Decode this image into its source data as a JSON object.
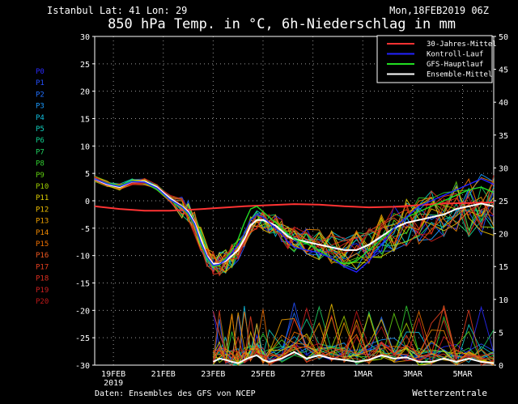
{
  "header": {
    "location": "Istanbul  Lat: 41 Lon: 29",
    "run": "Mon,18FEB2019 06Z",
    "title": "850 hPa Temp. in °C, 6h-Niederschlag in mm"
  },
  "footer": {
    "source": "Daten: Ensembles des GFS von NCEP",
    "brand": "Wetterzentrale"
  },
  "legend": [
    {
      "label": "30-Jahres-Mittel",
      "color": "#ff3333"
    },
    {
      "label": "Kontroll-Lauf",
      "color": "#2222ff"
    },
    {
      "label": "GFS-Hauptlauf",
      "color": "#22dd22"
    },
    {
      "label": "Ensemble-Mittel",
      "color": "#ffffff"
    }
  ],
  "members": [
    {
      "label": "P0",
      "color": "#2a2aff"
    },
    {
      "label": "P1",
      "color": "#2450ff"
    },
    {
      "label": "P2",
      "color": "#2070ff"
    },
    {
      "label": "P3",
      "color": "#1a9aff"
    },
    {
      "label": "P4",
      "color": "#10c0e0"
    },
    {
      "label": "P5",
      "color": "#10d0c0"
    },
    {
      "label": "P6",
      "color": "#10d090"
    },
    {
      "label": "P7",
      "color": "#20d060"
    },
    {
      "label": "P8",
      "color": "#30d030"
    },
    {
      "label": "P9",
      "color": "#60d010"
    },
    {
      "label": "P10",
      "color": "#a0d000"
    },
    {
      "label": "P11",
      "color": "#e0d000"
    },
    {
      "label": "P12",
      "color": "#f0c000"
    },
    {
      "label": "P13",
      "color": "#f0a000"
    },
    {
      "label": "P14",
      "color": "#f08800"
    },
    {
      "label": "P15",
      "color": "#f07000"
    },
    {
      "label": "P16",
      "color": "#f05820"
    },
    {
      "label": "P17",
      "color": "#e84020"
    },
    {
      "label": "P18",
      "color": "#e03020"
    },
    {
      "label": "P19",
      "color": "#d02020"
    },
    {
      "label": "P20",
      "color": "#c01818"
    }
  ],
  "chart_data": {
    "type": "line",
    "x_unit": "days after 18FEB2019 06Z",
    "ylabel_left": "°C",
    "ylabel_right": "mm",
    "ylim_left": [
      -30,
      30
    ],
    "ylim_right": [
      0,
      50
    ],
    "yticks_left": [
      30,
      25,
      20,
      15,
      10,
      5,
      0,
      -5,
      -10,
      -15,
      -20,
      -25,
      -30
    ],
    "yticks_right": [
      50,
      45,
      40,
      35,
      30,
      25,
      20,
      15,
      10,
      5,
      0
    ],
    "xlim": [
      0,
      16
    ],
    "xticks": [
      {
        "x": 0.75,
        "label": "19FEB",
        "sub": "2019"
      },
      {
        "x": 2.75,
        "label": "21FEB",
        "sub": ""
      },
      {
        "x": 4.75,
        "label": "23FEB",
        "sub": ""
      },
      {
        "x": 6.75,
        "label": "25FEB",
        "sub": ""
      },
      {
        "x": 8.75,
        "label": "27FEB",
        "sub": ""
      },
      {
        "x": 10.75,
        "label": "1MAR",
        "sub": ""
      },
      {
        "x": 12.75,
        "label": "3MAR",
        "sub": ""
      },
      {
        "x": 14.75,
        "label": "5MAR",
        "sub": ""
      }
    ],
    "grid": true,
    "legend_position": "top-right",
    "series": [
      {
        "name": "30-Jahres-Mittel",
        "axis": "left",
        "x": [
          0,
          1,
          2,
          3,
          4,
          5,
          6,
          7,
          8,
          9,
          10,
          11,
          12,
          13,
          14,
          15,
          16
        ],
        "y": [
          -1,
          -1.5,
          -1.8,
          -1.8,
          -1.6,
          -1.3,
          -1,
          -0.8,
          -0.6,
          -0.7,
          -1,
          -1.2,
          -1.1,
          -0.8,
          -0.5,
          -0.4,
          -0.3
        ]
      },
      {
        "name": "Ensemble-Mittel",
        "axis": "left",
        "x": [
          0,
          0.5,
          1,
          1.5,
          2,
          2.5,
          3,
          3.5,
          3.75,
          4,
          4.25,
          4.5,
          4.75,
          5,
          5.25,
          5.5,
          5.75,
          6,
          6.25,
          6.5,
          6.75,
          7,
          7.25,
          7.5,
          7.75,
          8,
          8.5,
          9,
          9.5,
          10,
          10.5,
          11,
          11.5,
          12,
          12.5,
          13,
          13.5,
          14,
          14.5,
          15,
          15.5,
          16
        ],
        "y": [
          4,
          3,
          2.5,
          3.5,
          3.5,
          2.5,
          0.5,
          -1,
          -2,
          -4,
          -7,
          -10,
          -11.5,
          -11.5,
          -11,
          -10,
          -9,
          -7,
          -4.5,
          -3.5,
          -3.5,
          -4,
          -4.5,
          -5.5,
          -6.5,
          -7,
          -7.5,
          -8,
          -8.5,
          -9,
          -9,
          -8,
          -6.5,
          -5,
          -4,
          -3.5,
          -3,
          -2.5,
          -1.5,
          -1,
          -0.5,
          -1
        ]
      },
      {
        "name": "GFS-Hauptlauf",
        "axis": "left",
        "x": [
          0,
          0.5,
          1,
          1.5,
          2,
          2.5,
          3,
          3.5,
          3.75,
          4,
          4.25,
          4.5,
          4.75,
          5,
          5.25,
          5.5,
          5.75,
          6,
          6.25,
          6.5,
          6.75,
          7,
          7.25,
          7.5,
          7.75,
          8,
          8.5,
          9,
          9.5,
          10,
          10.5,
          11,
          11.5,
          12,
          12.5,
          13,
          13.5,
          14,
          14.5,
          15,
          15.5,
          16
        ],
        "y": [
          4,
          3.2,
          2.8,
          3.6,
          3.4,
          2,
          0.2,
          -1.2,
          -2.5,
          -4.5,
          -8,
          -10.5,
          -12,
          -11.8,
          -10.5,
          -9,
          -7,
          -4,
          -1.5,
          -1,
          -2,
          -3,
          -4,
          -5,
          -6,
          -7,
          -7.8,
          -9,
          -10.5,
          -11.5,
          -11,
          -9,
          -7,
          -5,
          -3,
          -2,
          -1,
          0,
          1,
          2,
          2.5,
          1.5
        ]
      },
      {
        "name": "Kontroll-Lauf",
        "axis": "left",
        "x": [
          0,
          0.5,
          1,
          1.5,
          2,
          2.5,
          3,
          3.5,
          3.75,
          4,
          4.25,
          4.5,
          4.75,
          5,
          5.25,
          5.5,
          5.75,
          6,
          6.25,
          6.5,
          6.75,
          7,
          7.25,
          7.5,
          7.75,
          8,
          8.5,
          9,
          9.5,
          10,
          10.5,
          11,
          11.5,
          12,
          12.5,
          13,
          13.5,
          14,
          14.5,
          15,
          15.5,
          16
        ],
        "y": [
          4,
          3.1,
          2.6,
          3.5,
          3.4,
          2.3,
          0.3,
          -1.1,
          -2.2,
          -4.2,
          -7.5,
          -10.2,
          -11.8,
          -11.6,
          -10.8,
          -9.5,
          -8,
          -6,
          -3.5,
          -2.5,
          -3,
          -4,
          -5,
          -6,
          -7.5,
          -8.5,
          -9,
          -9.5,
          -10.5,
          -12,
          -13,
          -11,
          -8,
          -5,
          -3,
          -1,
          0,
          1,
          2,
          3,
          4,
          3
        ]
      },
      {
        "name": "Niederschlag Ensemble-Mittel",
        "axis": "right",
        "x": [
          4.75,
          5,
          5.25,
          5.5,
          5.75,
          6,
          6.25,
          6.5,
          6.75,
          7,
          7.5,
          8,
          8.5,
          9,
          9.5,
          10,
          10.5,
          11,
          11.5,
          12,
          12.5,
          13,
          13.5,
          14,
          14.5,
          15,
          15.5,
          16
        ],
        "y": [
          0.5,
          1,
          0.8,
          0.5,
          0.3,
          0.8,
          1.2,
          1.5,
          0.8,
          0.5,
          1,
          2,
          1,
          1.5,
          1,
          0.8,
          0.5,
          0.8,
          1.5,
          1,
          1.2,
          0.5,
          0.5,
          1,
          0.5,
          1,
          0.5,
          0.3
        ]
      }
    ]
  }
}
